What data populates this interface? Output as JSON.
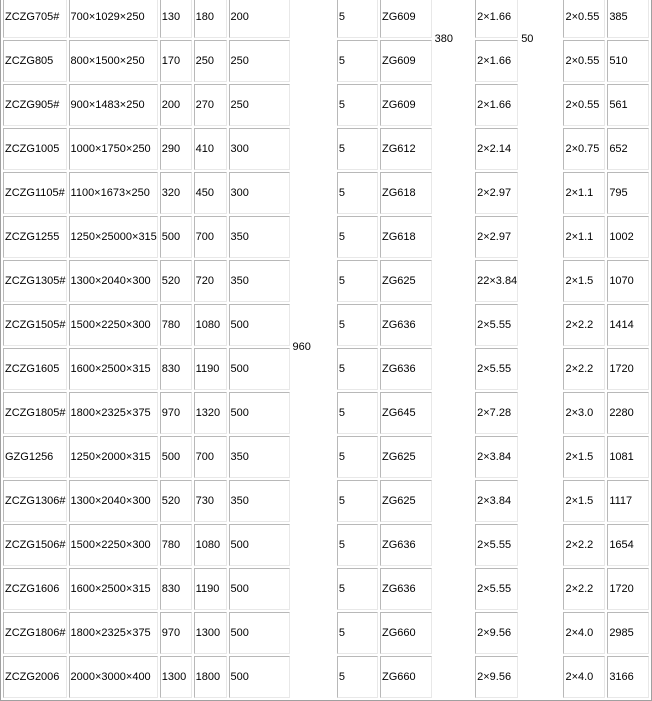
{
  "merged": {
    "col6": "960",
    "col9": "380",
    "col11": "50"
  },
  "rows": [
    [
      "ZCZG705#",
      "700×1029×250",
      "130",
      "180",
      "200",
      "5",
      "ZG609",
      "2×1.66",
      "2×0.55",
      "385"
    ],
    [
      "ZCZG805",
      "800×1500×250",
      "170",
      "250",
      "250",
      "5",
      "ZG609",
      "2×1.66",
      "2×0.55",
      "510"
    ],
    [
      "ZCZG905#",
      "900×1483×250",
      "200",
      "270",
      "250",
      "5",
      "ZG609",
      "2×1.66",
      "2×0.55",
      "561"
    ],
    [
      "ZCZG1005",
      "1000×1750×250",
      "290",
      "410",
      "300",
      "5",
      "ZG612",
      "2×2.14",
      "2×0.75",
      "652"
    ],
    [
      "ZCZG1105#",
      "1100×1673×250",
      "320",
      "450",
      "300",
      "5",
      "ZG618",
      "2×2.97",
      "2×1.1",
      "795"
    ],
    [
      "ZCZG1255",
      "1250×25000×315",
      "500",
      "700",
      "350",
      "5",
      "ZG618",
      "2×2.97",
      "2×1.1",
      "1002"
    ],
    [
      "ZCZG1305#",
      "1300×2040×300",
      "520",
      "720",
      "350",
      "5",
      "ZG625",
      "22×3.84",
      "2×1.5",
      "1070"
    ],
    [
      "ZCZG1505#",
      "1500×2250×300",
      "780",
      "1080",
      "500",
      "5",
      "ZG636",
      "2×5.55",
      "2×2.2",
      "1414"
    ],
    [
      "ZCZG1605",
      "1600×2500×315",
      "830",
      "1190",
      "500",
      "5",
      "ZG636",
      "2×5.55",
      "2×2.2",
      "1720"
    ],
    [
      "ZCZG1805#",
      "1800×2325×375",
      "970",
      "1320",
      "500",
      "5",
      "ZG645",
      "2×7.28",
      "2×3.0",
      "2280"
    ],
    [
      "GZG1256",
      "1250×2000×315",
      "500",
      "700",
      "350",
      "5",
      "ZG625",
      "2×3.84",
      "2×1.5",
      "1081"
    ],
    [
      "ZCZG1306#",
      "1300×2040×300",
      "520",
      "730",
      "350",
      "5",
      "ZG625",
      "2×3.84",
      "2×1.5",
      "1117"
    ],
    [
      "ZCZG1506#",
      "1500×2250×300",
      "780",
      "1080",
      "500",
      "5",
      "ZG636",
      "2×5.55",
      "2×2.2",
      "1654"
    ],
    [
      "ZCZG1606",
      "1600×2500×315",
      "830",
      "1190",
      "500",
      "5",
      "ZG636",
      "2×5.55",
      "2×2.2",
      "1720"
    ],
    [
      "ZCZG1806#",
      "1800×2325×375",
      "970",
      "1300",
      "500",
      "5",
      "ZG660",
      "2×9.56",
      "2×4.0",
      "2985"
    ],
    [
      "ZCZG2006",
      "2000×3000×400",
      "1300",
      "1800",
      "500",
      "5",
      "ZG660",
      "2×9.56",
      "2×4.0",
      "3166"
    ]
  ]
}
